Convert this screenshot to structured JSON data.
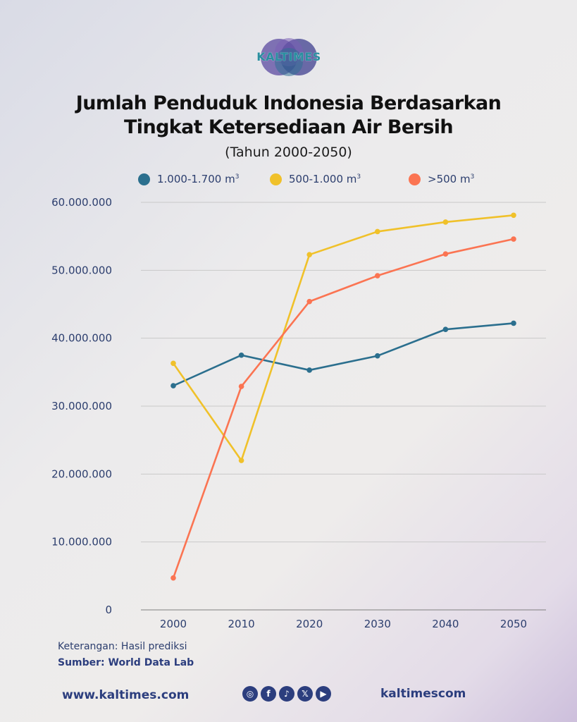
{
  "brand": {
    "logo_text": "KALTIMES"
  },
  "title_line1": "Jumlah Penduduk Indonesia Berdasarkan",
  "title_line2": "Tingkat Ketersediaan Air Bersih",
  "subtitle": "(Tahun 2000-2050)",
  "legend": [
    {
      "label": "1.000-1.700 m",
      "sup": "3",
      "color": "#2b6f8e"
    },
    {
      "label": "500-1.000 m",
      "sup": "3",
      "color": "#f0c12a"
    },
    {
      "label": ">500 m",
      "sup": "3",
      "color": "#fb7452"
    }
  ],
  "chart_data": {
    "type": "line",
    "title": "Jumlah Penduduk Indonesia Berdasarkan Tingkat Ketersediaan Air Bersih",
    "subtitle": "(Tahun 2000-2050)",
    "categories": [
      "2000",
      "2010",
      "2020",
      "2030",
      "2040",
      "2050"
    ],
    "ylim": [
      0,
      60000000
    ],
    "yticks": [
      0,
      10000000,
      20000000,
      30000000,
      40000000,
      50000000,
      60000000
    ],
    "ytick_labels": [
      "0",
      "10.000.000",
      "20.000.000",
      "30.000.000",
      "40.000.000",
      "50.000.000",
      "60.000.000"
    ],
    "grid": true,
    "legend_position": "top",
    "series": [
      {
        "name": "1.000-1.700 m³",
        "color": "#2b6f8e",
        "values": [
          33000000,
          37500000,
          35300000,
          37400000,
          41300000,
          42200000
        ]
      },
      {
        "name": "500-1.000 m³",
        "color": "#f0c12a",
        "values": [
          36300000,
          22000000,
          52300000,
          55700000,
          57100000,
          58100000
        ]
      },
      {
        "name": ">500 m³",
        "color": "#fb7452",
        "values": [
          4700000,
          32900000,
          45400000,
          49200000,
          52400000,
          54600000
        ]
      }
    ]
  },
  "footer": {
    "note": "Keterangan: Hasil prediksi",
    "source": "Sumber: World Data Lab",
    "website": "www.kaltimes.com",
    "handle": "kaltimescom",
    "social_icons": [
      {
        "name": "instagram-icon",
        "glyph": "◎"
      },
      {
        "name": "facebook-icon",
        "glyph": "f"
      },
      {
        "name": "tiktok-icon",
        "glyph": "♪"
      },
      {
        "name": "x-icon",
        "glyph": "𝕏"
      },
      {
        "name": "youtube-icon",
        "glyph": "▶"
      }
    ]
  }
}
